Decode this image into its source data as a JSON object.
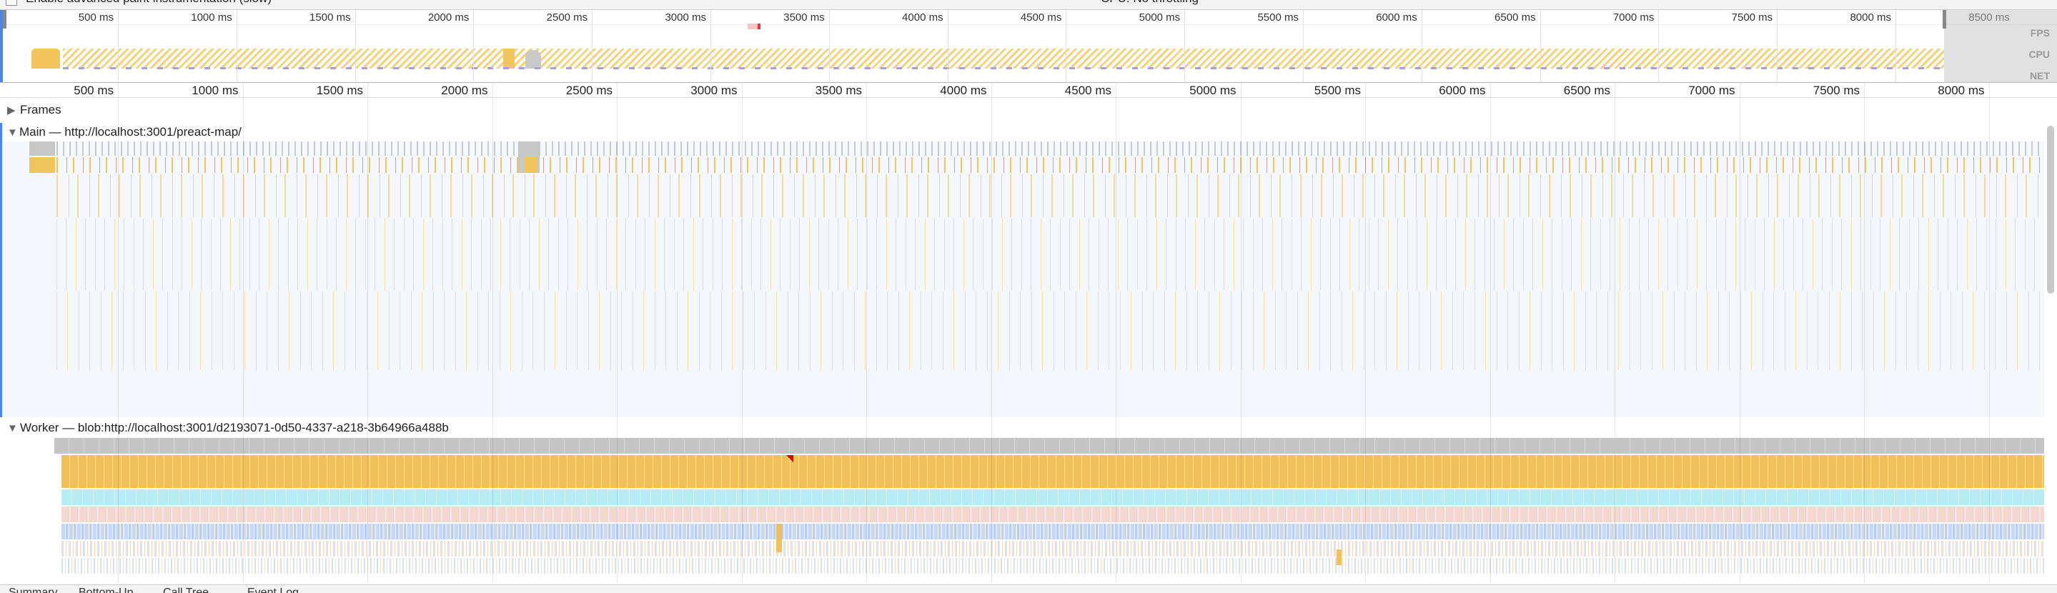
{
  "toolbar": {
    "paint_option": "Enable advanced paint instrumentation (slow)",
    "cpu": "CPU: No throttling"
  },
  "overview": {
    "ticks": [
      "500 ms",
      "1000 ms",
      "1500 ms",
      "2000 ms",
      "2500 ms",
      "3000 ms",
      "3500 ms",
      "4000 ms",
      "4500 ms",
      "5000 ms",
      "5500 ms",
      "6000 ms",
      "6500 ms",
      "7000 ms",
      "7500 ms",
      "8000 ms",
      "8500 ms"
    ],
    "lanes": [
      "FPS",
      "CPU",
      "NET"
    ]
  },
  "ruler": {
    "ticks": [
      "500 ms",
      "1000 ms",
      "1500 ms",
      "2000 ms",
      "2500 ms",
      "3000 ms",
      "3500 ms",
      "4000 ms",
      "4500 ms",
      "5000 ms",
      "5500 ms",
      "6000 ms",
      "6500 ms",
      "7000 ms",
      "7500 ms",
      "8000 ms"
    ]
  },
  "tracks": [
    {
      "label": "Frames"
    },
    {
      "label": "Main — http://localhost:3001/preact-map/"
    },
    {
      "label": "Worker — blob:http://localhost:3001/d2193071-0d50-4337-a218-3b64966a488b"
    }
  ],
  "tabs": [
    "Summary",
    "Bottom-Up",
    "Call Tree",
    "Event Log"
  ]
}
